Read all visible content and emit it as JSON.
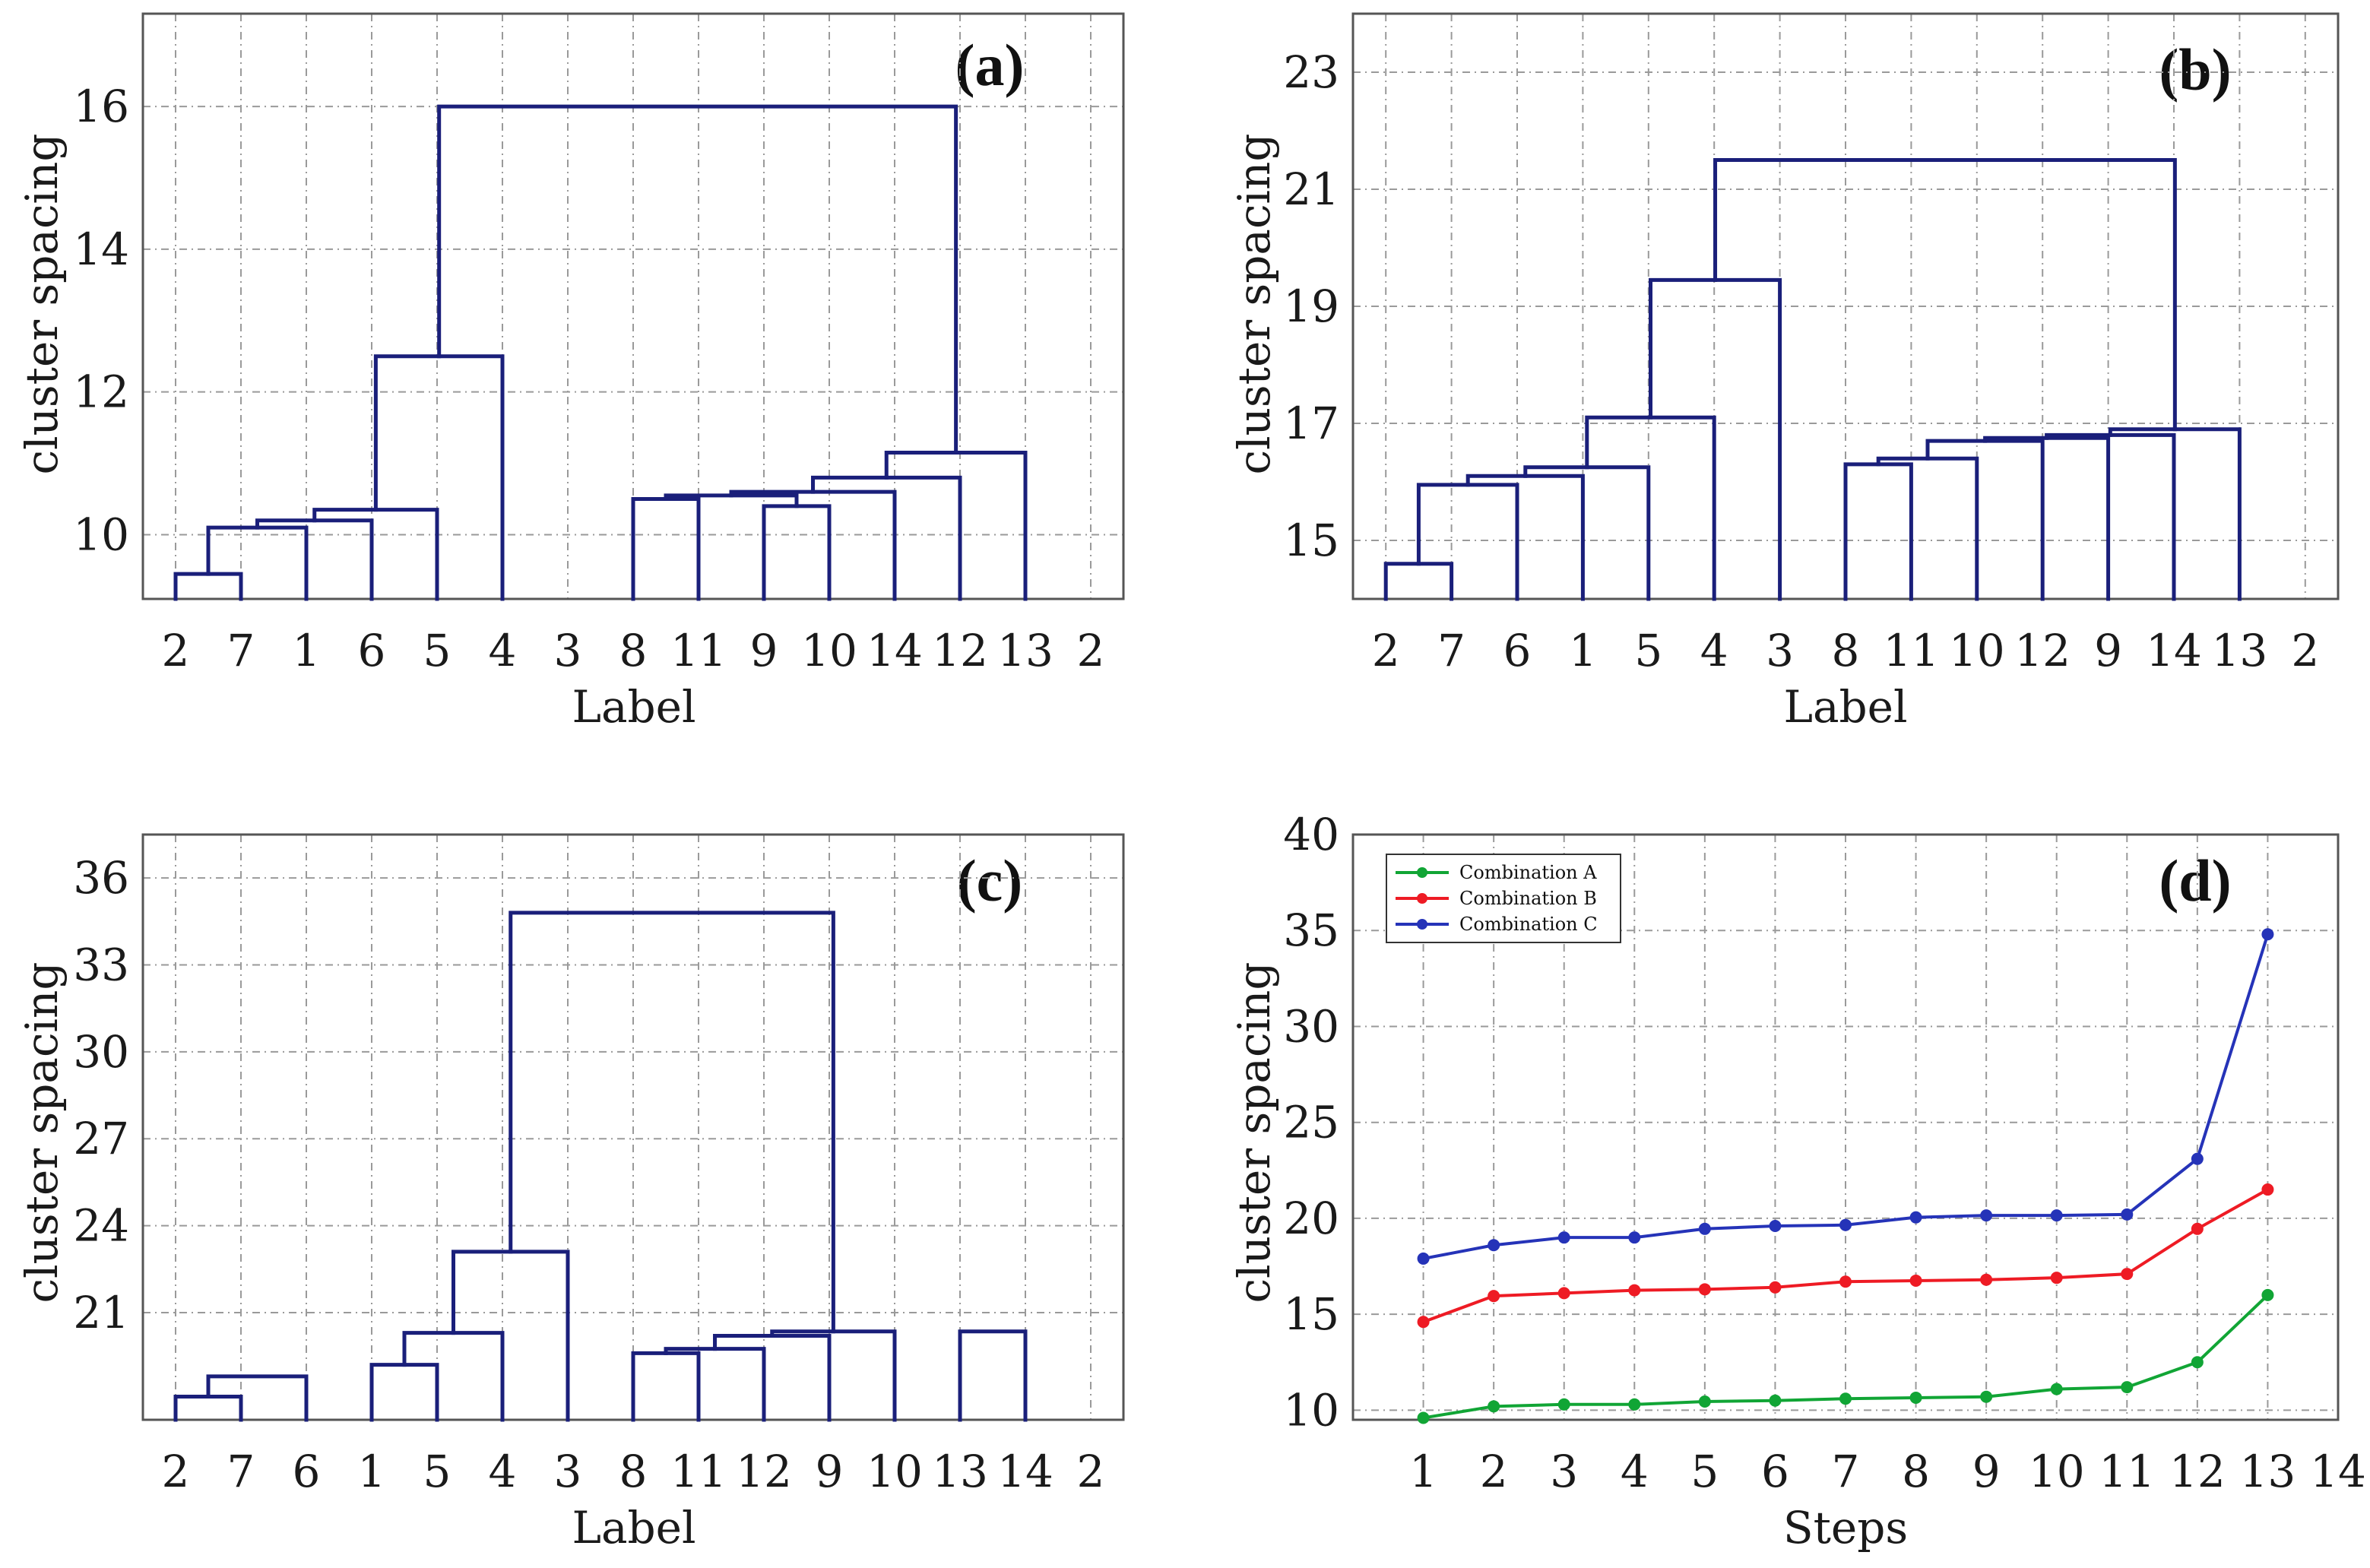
{
  "chart_data": [
    {
      "type": "dendrogram",
      "panel_label": "(a)",
      "ylabel": "cluster spacing",
      "xlabel": "Label",
      "ylim": [
        9.1,
        17.3
      ],
      "yticks": [
        10,
        12,
        14,
        16
      ],
      "leaf_order": [
        "2",
        "7",
        "1",
        "6",
        "5",
        "4",
        "3",
        "8",
        "11",
        "9",
        "10",
        "14",
        "12",
        "13",
        "2"
      ],
      "merges": [
        {
          "height": 9.45,
          "children": [
            0,
            1
          ]
        },
        {
          "height": 10.1,
          "children": [
            -1,
            2
          ]
        },
        {
          "height": 10.2,
          "children": [
            -2,
            3
          ]
        },
        {
          "height": 10.35,
          "children": [
            -3,
            4
          ]
        },
        {
          "height": 10.5,
          "children": [
            7,
            8
          ]
        },
        {
          "height": 10.4,
          "children": [
            9,
            10
          ]
        },
        {
          "height": 10.55,
          "children": [
            -5,
            -6
          ]
        },
        {
          "height": 10.6,
          "children": [
            -7,
            11
          ]
        },
        {
          "height": 10.8,
          "children": [
            -8,
            12
          ]
        },
        {
          "height": 11.15,
          "children": [
            -9,
            13
          ]
        },
        {
          "height": 12.5,
          "children": [
            -4,
            5
          ]
        },
        {
          "height": 16.0,
          "children": [
            -11,
            -10
          ]
        }
      ]
    },
    {
      "type": "dendrogram",
      "panel_label": "(b)",
      "ylabel": "cluster spacing",
      "xlabel": "Label",
      "ylim": [
        14.0,
        24.0
      ],
      "yticks": [
        15,
        17,
        19,
        21,
        23
      ],
      "leaf_order": [
        "2",
        "7",
        "6",
        "1",
        "5",
        "4",
        "3",
        "8",
        "11",
        "10",
        "12",
        "9",
        "14",
        "13",
        "2"
      ],
      "merges": [
        {
          "height": 14.6,
          "children": [
            0,
            1
          ]
        },
        {
          "height": 15.95,
          "children": [
            -1,
            2
          ]
        },
        {
          "height": 16.1,
          "children": [
            -2,
            3
          ]
        },
        {
          "height": 16.25,
          "children": [
            -3,
            4
          ]
        },
        {
          "height": 17.1,
          "children": [
            -4,
            5
          ]
        },
        {
          "height": 19.45,
          "children": [
            -5,
            6
          ]
        },
        {
          "height": 16.3,
          "children": [
            7,
            8
          ]
        },
        {
          "height": 16.4,
          "children": [
            -7,
            9
          ]
        },
        {
          "height": 16.7,
          "children": [
            -8,
            10
          ]
        },
        {
          "height": 16.75,
          "children": [
            -9,
            11
          ]
        },
        {
          "height": 16.8,
          "children": [
            -10,
            12
          ]
        },
        {
          "height": 16.9,
          "children": [
            -11,
            13
          ]
        },
        {
          "height": 21.5,
          "children": [
            -6,
            -12
          ]
        }
      ]
    },
    {
      "type": "dendrogram",
      "panel_label": "(c)",
      "ylabel": "cluster spacing",
      "xlabel": "Label",
      "ylim": [
        17.3,
        37.5
      ],
      "yticks": [
        21,
        24,
        27,
        30,
        33,
        36
      ],
      "leaf_order": [
        "2",
        "7",
        "6",
        "1",
        "5",
        "4",
        "3",
        "8",
        "11",
        "12",
        "9",
        "10",
        "13",
        "14",
        "2"
      ],
      "merges": [
        {
          "height": 18.1,
          "children": [
            0,
            1
          ]
        },
        {
          "height": 18.8,
          "children": [
            -1,
            2
          ]
        },
        {
          "height": 19.2,
          "children": [
            3,
            4
          ]
        },
        {
          "height": 20.3,
          "children": [
            -3,
            5
          ]
        },
        {
          "height": 23.1,
          "children": [
            -4,
            6
          ]
        },
        {
          "height": 19.6,
          "children": [
            7,
            8
          ]
        },
        {
          "height": 19.75,
          "children": [
            -6,
            9
          ]
        },
        {
          "height": 20.2,
          "children": [
            -7,
            10
          ]
        },
        {
          "height": 20.35,
          "children": [
            -8,
            11
          ]
        },
        {
          "height": 20.35,
          "children": [
            12,
            13
          ]
        },
        {
          "height": 34.8,
          "children": [
            -5,
            -9
          ]
        }
      ]
    },
    {
      "type": "line",
      "panel_label": "(d)",
      "ylabel": "cluster spacing",
      "xlabel": "Steps",
      "xlim": [
        0,
        14
      ],
      "ylim": [
        9.5,
        40
      ],
      "xticks": [
        1,
        2,
        3,
        4,
        5,
        6,
        7,
        8,
        9,
        10,
        11,
        12,
        13,
        14
      ],
      "yticks": [
        10,
        15,
        20,
        25,
        30,
        35,
        40
      ],
      "legend_position": "top-left",
      "x": [
        1,
        2,
        3,
        4,
        5,
        6,
        7,
        8,
        9,
        10,
        11,
        12,
        13
      ],
      "series": [
        {
          "name": "Combination A",
          "color": "#11a535",
          "values": [
            9.6,
            10.2,
            10.3,
            10.3,
            10.45,
            10.5,
            10.6,
            10.65,
            10.7,
            11.1,
            11.2,
            12.5,
            16.0
          ]
        },
        {
          "name": "Combination B",
          "color": "#ee1b24",
          "values": [
            14.6,
            15.95,
            16.1,
            16.25,
            16.3,
            16.4,
            16.7,
            16.75,
            16.8,
            16.9,
            17.1,
            19.45,
            21.5
          ]
        },
        {
          "name": "Combination C",
          "color": "#2533b8",
          "values": [
            17.9,
            18.6,
            19.0,
            19.0,
            19.45,
            19.6,
            19.65,
            20.05,
            20.15,
            20.15,
            20.2,
            23.1,
            34.8
          ]
        }
      ]
    }
  ]
}
